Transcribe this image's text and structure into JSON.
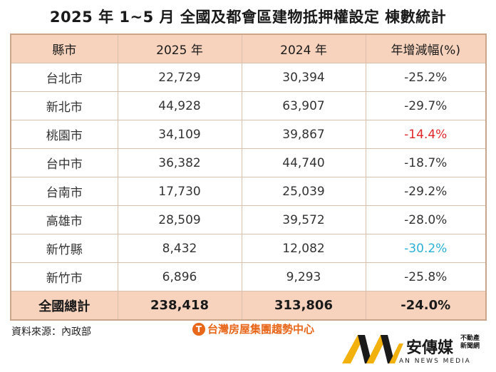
{
  "title": "2025 年 1~5 月 全國及都會區建物抵押權設定 棟數統計",
  "headers": [
    "縣市",
    "2025 年",
    "2024 年",
    "年增減幅(%)"
  ],
  "rows": [
    {
      "city": "台北市",
      "y2025": "22,729",
      "y2024": "30,394",
      "change": "-25.2%"
    },
    {
      "city": "新北市",
      "y2025": "44,928",
      "y2024": "63,907",
      "change": "-29.7%"
    },
    {
      "city": "桃園市",
      "y2025": "34,109",
      "y2024": "39,867",
      "change": "-14.4%",
      "change_color": "#e0262a"
    },
    {
      "city": "台中市",
      "y2025": "36,382",
      "y2024": "44,740",
      "change": "-18.7%"
    },
    {
      "city": "台南市",
      "y2025": "17,730",
      "y2024": "25,039",
      "change": "-29.2%"
    },
    {
      "city": "高雄市",
      "y2025": "28,509",
      "y2024": "39,572",
      "change": "-28.0%"
    },
    {
      "city": "新竹縣",
      "y2025": "8,432",
      "y2024": "12,082",
      "change": "-30.2%",
      "change_color": "#2bb0d6"
    },
    {
      "city": "新竹市",
      "y2025": "6,896",
      "y2024": "9,293",
      "change": "-25.8%"
    }
  ],
  "total": {
    "city": "全國總計",
    "y2025": "238,418",
    "y2024": "313,806",
    "change": "-24.0%"
  },
  "source": "資料來源：內政部",
  "brand": "台灣房屋集團趨勢中心",
  "logo": {
    "name": "安傳媒",
    "sub1": "不動產",
    "sub2": "新聞網",
    "en": "AN NEWS MEDIA"
  },
  "colors": {
    "header_bg": "#f7d3bd",
    "border": "#c9a58a",
    "brand_orange": "#e8671a"
  }
}
